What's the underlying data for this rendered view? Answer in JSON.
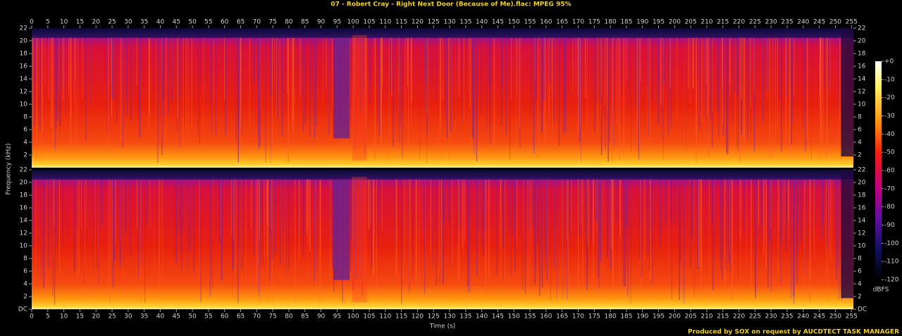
{
  "chart_data": {
    "type": "spectrogram",
    "title": "07 - Robert Cray - Right Next Door (Because of Me).flac: MPEG 95%",
    "x_label": "Time (s)",
    "y_label": "Frequency (kHz)",
    "xlim": [
      0,
      255.6
    ],
    "xticks": [
      0,
      5,
      10,
      15,
      20,
      25,
      30,
      35,
      40,
      45,
      50,
      55,
      60,
      65,
      70,
      75,
      80,
      85,
      90,
      95,
      100,
      105,
      110,
      115,
      120,
      125,
      130,
      135,
      140,
      145,
      150,
      155,
      160,
      165,
      170,
      175,
      180,
      185,
      190,
      195,
      200,
      205,
      210,
      215,
      220,
      225,
      230,
      235,
      240,
      245,
      250,
      255
    ],
    "ylim": [
      0,
      22
    ],
    "channels": [
      {
        "yticks": [
          2,
          4,
          6,
          8,
          10,
          12,
          14,
          16,
          18,
          20,
          22
        ]
      },
      {
        "yticks": [
          {
            "value": 0,
            "label": "DC"
          },
          2,
          4,
          6,
          8,
          10,
          12,
          14,
          16,
          18,
          20,
          22
        ]
      }
    ],
    "colorbar": {
      "label": "dBFS",
      "lim": [
        -120,
        0
      ],
      "ticks": [
        {
          "value": 0,
          "label": "+0"
        },
        -10,
        -20,
        -30,
        -40,
        -50,
        -60,
        -70,
        -80,
        -90,
        -100,
        -110,
        -120
      ]
    },
    "footer": "Produced by SOX on request by AUCDTECT TASK MANAGER"
  }
}
